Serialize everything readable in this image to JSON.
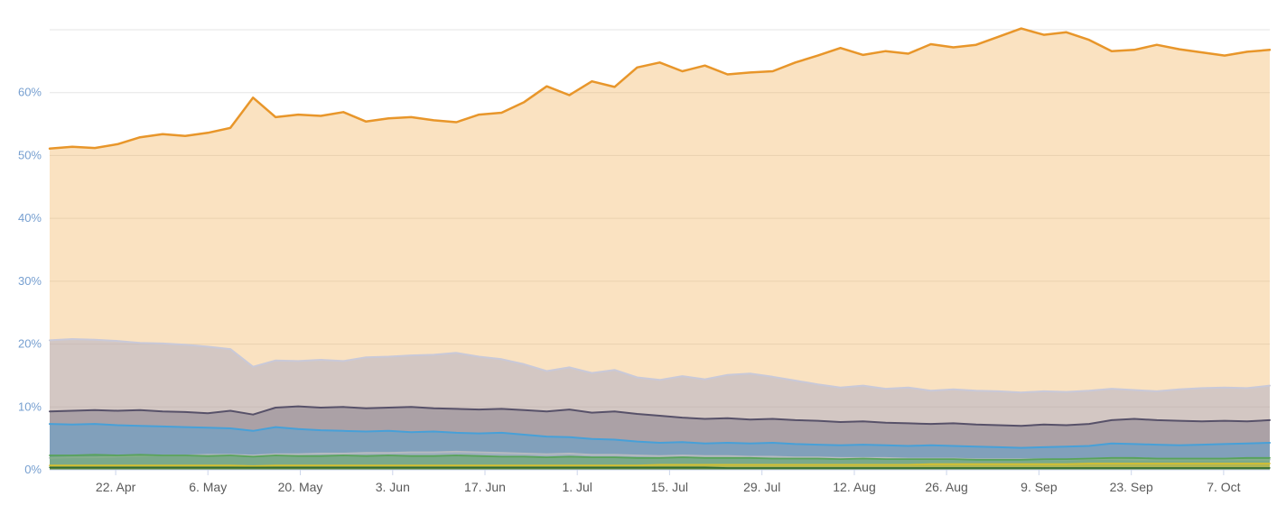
{
  "page": {
    "background": "#ffffff"
  },
  "chart_data": {
    "type": "area",
    "title": "",
    "subtitle": "",
    "xlabel": "",
    "ylabel": "",
    "legend": "none",
    "grid": true,
    "ylim": [
      0,
      70
    ],
    "y_grid_values": [
      0,
      10,
      20,
      30,
      40,
      50,
      60,
      70
    ],
    "y_ticks": [
      {
        "value": 0,
        "label": "0%"
      },
      {
        "value": 10,
        "label": "10%"
      },
      {
        "value": 20,
        "label": "20%"
      },
      {
        "value": 30,
        "label": "30%"
      },
      {
        "value": 40,
        "label": "40%"
      },
      {
        "value": 50,
        "label": "50%"
      },
      {
        "value": 60,
        "label": "60%"
      }
    ],
    "x_ticks": [
      {
        "position": 0.0541,
        "label": "22. Apr"
      },
      {
        "position": 0.1297,
        "label": "6. May"
      },
      {
        "position": 0.2054,
        "label": "20. May"
      },
      {
        "position": 0.2811,
        "label": "3. Jun"
      },
      {
        "position": 0.3568,
        "label": "17. Jun"
      },
      {
        "position": 0.4324,
        "label": "1. Jul"
      },
      {
        "position": 0.5081,
        "label": "15. Jul"
      },
      {
        "position": 0.5838,
        "label": "29. Jul"
      },
      {
        "position": 0.6595,
        "label": "12. Aug"
      },
      {
        "position": 0.7351,
        "label": "26. Aug"
      },
      {
        "position": 0.8108,
        "label": "9. Sep"
      },
      {
        "position": 0.8865,
        "label": "23. Sep"
      },
      {
        "position": 0.9622,
        "label": "7. Oct"
      }
    ],
    "colors": {
      "grid": "#e6e6e6",
      "axis_line": "#ccd6eb",
      "y_label": "#769fd0",
      "x_label": "#5a5a5a"
    },
    "series": [
      {
        "name": "orange-top",
        "line_color": "#e8962a",
        "fill_color": "#f0a43e",
        "fill_opacity": 0.32,
        "line_width": 2.5,
        "values": [
          51.1,
          51.4,
          51.2,
          51.8,
          52.9,
          53.4,
          53.1,
          53.6,
          54.4,
          59.2,
          56.1,
          56.5,
          56.3,
          56.9,
          55.4,
          55.9,
          56.1,
          55.6,
          55.3,
          56.5,
          56.8,
          58.5,
          61.0,
          59.6,
          61.8,
          60.9,
          64.0,
          64.8,
          63.4,
          64.3,
          62.9,
          63.2,
          63.4,
          64.8,
          65.9,
          67.1,
          66.0,
          66.6,
          66.2,
          67.7,
          67.2,
          67.6,
          68.9,
          70.2,
          69.2,
          69.6,
          68.4,
          66.6,
          66.8,
          67.6,
          66.9,
          66.4,
          65.9,
          66.5,
          66.8
        ]
      },
      {
        "name": "light-lavender",
        "line_color": "#c9c9d8",
        "fill_color": "#a9a9c5",
        "fill_opacity": 0.48,
        "line_width": 2,
        "values": [
          20.6,
          20.8,
          20.7,
          20.5,
          20.2,
          20.1,
          19.9,
          19.6,
          19.2,
          16.4,
          17.4,
          17.3,
          17.5,
          17.3,
          17.9,
          18.0,
          18.2,
          18.3,
          18.6,
          18.0,
          17.6,
          16.8,
          15.7,
          16.3,
          15.4,
          15.9,
          14.7,
          14.3,
          14.9,
          14.4,
          15.1,
          15.3,
          14.8,
          14.2,
          13.6,
          13.1,
          13.4,
          12.9,
          13.1,
          12.6,
          12.8,
          12.6,
          12.5,
          12.3,
          12.5,
          12.4,
          12.6,
          12.9,
          12.7,
          12.5,
          12.8,
          13.0,
          13.1,
          13.0,
          13.4
        ]
      },
      {
        "name": "dark-purple",
        "line_color": "#575169",
        "fill_color": "#575169",
        "fill_opacity": 0.32,
        "line_width": 2,
        "values": [
          9.3,
          9.4,
          9.5,
          9.4,
          9.5,
          9.3,
          9.2,
          9.0,
          9.4,
          8.8,
          9.9,
          10.1,
          9.9,
          10.0,
          9.8,
          9.9,
          10.0,
          9.8,
          9.7,
          9.6,
          9.7,
          9.5,
          9.3,
          9.6,
          9.1,
          9.3,
          8.9,
          8.6,
          8.3,
          8.1,
          8.2,
          8.0,
          8.1,
          7.9,
          7.8,
          7.6,
          7.7,
          7.5,
          7.4,
          7.3,
          7.4,
          7.2,
          7.1,
          7.0,
          7.2,
          7.1,
          7.3,
          7.9,
          8.1,
          7.9,
          7.8,
          7.7,
          7.8,
          7.7,
          7.9
        ]
      },
      {
        "name": "blue",
        "line_color": "#47a0d8",
        "fill_color": "#47a0d8",
        "fill_opacity": 0.42,
        "line_width": 2,
        "values": [
          7.3,
          7.2,
          7.3,
          7.1,
          7.0,
          6.9,
          6.8,
          6.7,
          6.6,
          6.2,
          6.8,
          6.5,
          6.3,
          6.2,
          6.1,
          6.2,
          6.0,
          6.1,
          5.9,
          5.8,
          5.9,
          5.6,
          5.3,
          5.2,
          4.9,
          4.8,
          4.5,
          4.3,
          4.4,
          4.2,
          4.3,
          4.2,
          4.3,
          4.1,
          4.0,
          3.9,
          4.0,
          3.9,
          3.8,
          3.9,
          3.8,
          3.7,
          3.6,
          3.5,
          3.6,
          3.7,
          3.8,
          4.2,
          4.1,
          4.0,
          3.9,
          4.0,
          4.1,
          4.2,
          4.3
        ]
      },
      {
        "name": "silver",
        "line_color": "#b7bbc0",
        "fill_color": "#b7bbc0",
        "fill_opacity": 0.55,
        "line_width": 1.8,
        "values": [
          1.9,
          2.0,
          2.0,
          2.1,
          2.2,
          2.3,
          2.3,
          2.4,
          2.4,
          2.3,
          2.5,
          2.5,
          2.6,
          2.6,
          2.7,
          2.7,
          2.8,
          2.8,
          2.9,
          2.8,
          2.7,
          2.6,
          2.5,
          2.6,
          2.4,
          2.4,
          2.3,
          2.2,
          2.3,
          2.2,
          2.2,
          2.1,
          2.1,
          2.0,
          2.0,
          1.9,
          1.9,
          1.9,
          1.8,
          1.8,
          1.8,
          1.7,
          1.7,
          1.7,
          1.7,
          1.6,
          1.7,
          1.7,
          1.6,
          1.6,
          1.6,
          1.6,
          1.6,
          1.6,
          1.6
        ]
      },
      {
        "name": "green",
        "line_color": "#58a35a",
        "fill_color": "#58a35a",
        "fill_opacity": 0.5,
        "line_width": 1.8,
        "values": [
          2.3,
          2.3,
          2.4,
          2.3,
          2.4,
          2.3,
          2.3,
          2.2,
          2.3,
          2.1,
          2.3,
          2.2,
          2.2,
          2.3,
          2.2,
          2.3,
          2.2,
          2.2,
          2.3,
          2.2,
          2.1,
          2.1,
          2.0,
          2.1,
          2.0,
          2.0,
          1.9,
          1.9,
          2.0,
          1.9,
          1.9,
          1.9,
          1.8,
          1.8,
          1.8,
          1.7,
          1.8,
          1.7,
          1.7,
          1.7,
          1.7,
          1.6,
          1.6,
          1.6,
          1.7,
          1.7,
          1.8,
          1.9,
          1.9,
          1.8,
          1.8,
          1.8,
          1.8,
          1.9,
          1.9
        ]
      },
      {
        "name": "yellow",
        "line_color": "#d3bf31",
        "fill_color": "#d3bf31",
        "fill_opacity": 0.6,
        "line_width": 1.8,
        "values": [
          0.7,
          0.7,
          0.7,
          0.7,
          0.7,
          0.7,
          0.7,
          0.7,
          0.7,
          0.6,
          0.7,
          0.7,
          0.7,
          0.7,
          0.7,
          0.7,
          0.7,
          0.7,
          0.7,
          0.7,
          0.7,
          0.7,
          0.7,
          0.7,
          0.7,
          0.7,
          0.7,
          0.8,
          0.8,
          0.8,
          0.8,
          0.8,
          0.8,
          0.8,
          0.8,
          0.8,
          0.8,
          0.8,
          0.8,
          0.9,
          0.9,
          0.9,
          0.9,
          0.9,
          0.9,
          0.9,
          1.0,
          1.0,
          1.0,
          1.0,
          1.0,
          1.0,
          1.0,
          1.0,
          1.0
        ]
      },
      {
        "name": "dark-green",
        "line_color": "#2f6b33",
        "fill_color": "#2f6b33",
        "fill_opacity": 0.7,
        "line_width": 1.5,
        "values": [
          0.4,
          0.4,
          0.4,
          0.4,
          0.4,
          0.4,
          0.4,
          0.4,
          0.4,
          0.4,
          0.4,
          0.4,
          0.4,
          0.4,
          0.4,
          0.4,
          0.4,
          0.4,
          0.4,
          0.4,
          0.4,
          0.4,
          0.4,
          0.4,
          0.4,
          0.4,
          0.4,
          0.4,
          0.4,
          0.4,
          0.3,
          0.3,
          0.3,
          0.3,
          0.3,
          0.3,
          0.3,
          0.3,
          0.3,
          0.3,
          0.3,
          0.3,
          0.3,
          0.3,
          0.3,
          0.3,
          0.3,
          0.3,
          0.3,
          0.3,
          0.3,
          0.3,
          0.3,
          0.3,
          0.3
        ]
      }
    ]
  }
}
